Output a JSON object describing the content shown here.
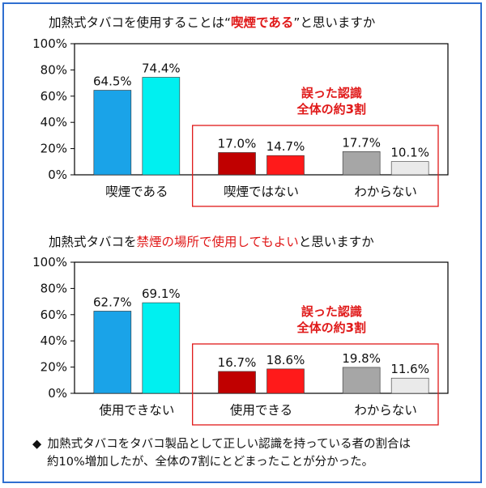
{
  "chart_data": [
    {
      "type": "bar",
      "title_prefix": "加熱式タバコを使用することは“",
      "title_highlight": "喫煙である",
      "title_suffix": "”と思いますか",
      "categories": [
        "喫煙である",
        "喫煙ではない",
        "わからない"
      ],
      "series": [
        {
          "values": [
            64.5,
            17.0,
            17.7
          ],
          "colors": [
            "#1aa3e8",
            "#c00000",
            "#a6a6a6"
          ]
        },
        {
          "values": [
            74.4,
            14.7,
            10.1
          ],
          "colors": [
            "#00f0f0",
            "#ff1a1a",
            "#eaeaea"
          ]
        }
      ],
      "value_labels": [
        [
          "64.5%",
          "74.4%"
        ],
        [
          "17.0%",
          "14.7%"
        ],
        [
          "17.7%",
          "10.1%"
        ]
      ],
      "ylim": [
        0,
        100
      ],
      "yticks": [
        "0%",
        "20%",
        "40%",
        "60%",
        "80%",
        "100%"
      ],
      "annotation": [
        "誤った認識",
        "全体の約3割"
      ],
      "grid": false
    },
    {
      "type": "bar",
      "title_prefix": "加熱式タバコを",
      "title_highlight": "禁煙の場所で使用してもよい",
      "title_suffix": "と思いますか",
      "categories": [
        "使用できない",
        "使用できる",
        "わからない"
      ],
      "series": [
        {
          "values": [
            62.7,
            16.7,
            19.8
          ],
          "colors": [
            "#1aa3e8",
            "#c00000",
            "#a6a6a6"
          ]
        },
        {
          "values": [
            69.1,
            18.6,
            11.6
          ],
          "colors": [
            "#00f0f0",
            "#ff1a1a",
            "#eaeaea"
          ]
        }
      ],
      "value_labels": [
        [
          "62.7%",
          "69.1%"
        ],
        [
          "16.7%",
          "18.6%"
        ],
        [
          "19.8%",
          "11.6%"
        ]
      ],
      "ylim": [
        0,
        100
      ],
      "yticks": [
        "0%",
        "20%",
        "40%",
        "60%",
        "80%",
        "100%"
      ],
      "annotation": [
        "誤った認識",
        "全体の約3割"
      ],
      "grid": false
    }
  ],
  "footer_note": {
    "bullet": "◆",
    "line1": "加熱式タバコをタバコ製品として正しい認識を持っている者の割合は",
    "line2": "約10%増加したが、全体の7割にとどまったことが分かった。"
  }
}
